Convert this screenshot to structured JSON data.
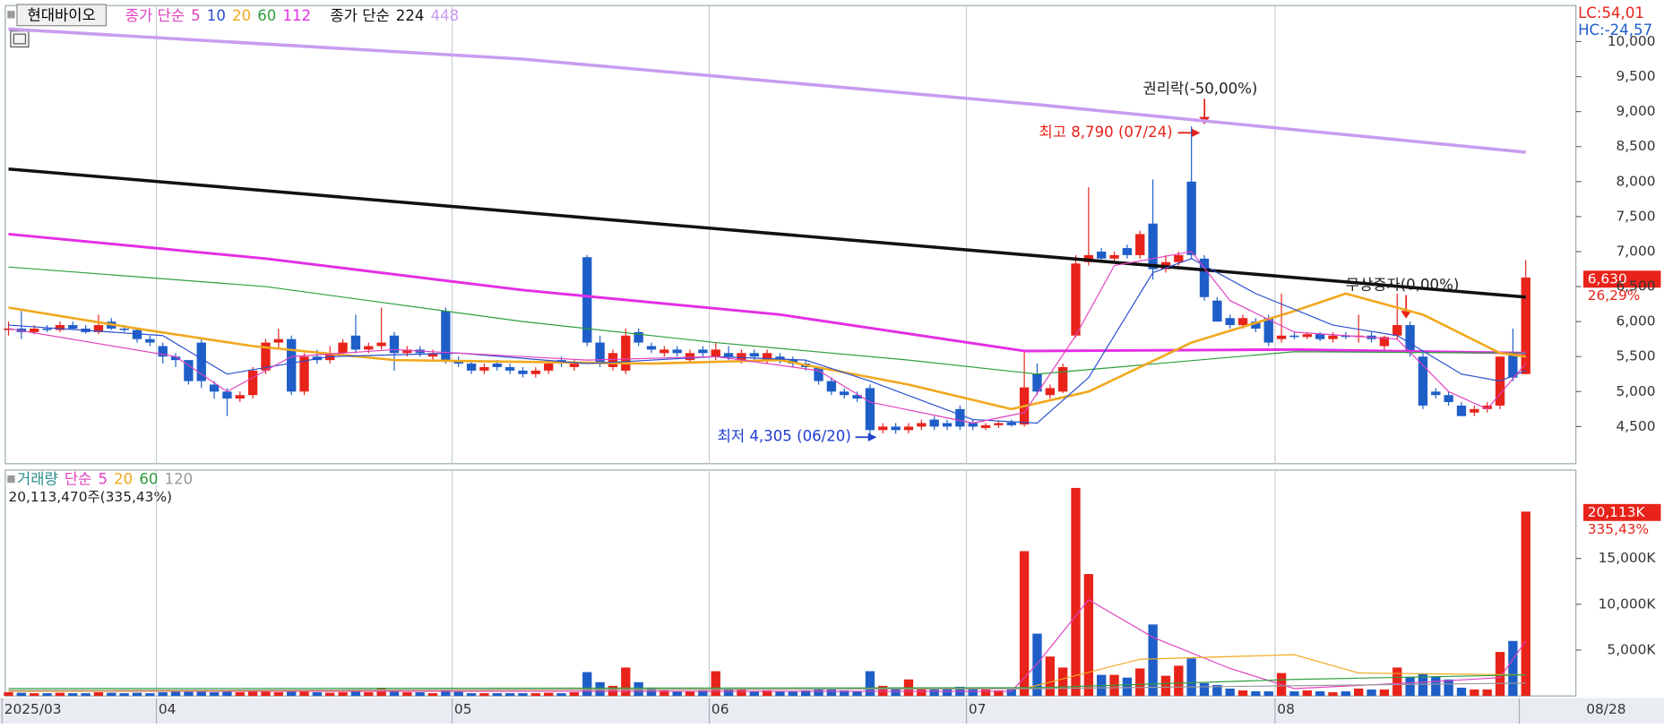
{
  "chart_data": [
    {
      "type": "candlestick",
      "title": "현대바이오",
      "up_color": "#e8231a",
      "down_color": "#1e5ec8",
      "xlim": [
        -0.25,
        121.9
      ],
      "ylim": [
        3970,
        10515
      ],
      "yticks": [
        {
          "value": 4500,
          "label": "4,500"
        },
        {
          "value": 5000,
          "label": "5,000"
        },
        {
          "value": 5500,
          "label": "5,500"
        },
        {
          "value": 6000,
          "label": "6,000"
        },
        {
          "value": 6500,
          "label": "6,500"
        },
        {
          "value": 7000,
          "label": "7,000"
        },
        {
          "value": 7500,
          "label": "7,500"
        },
        {
          "value": 8000,
          "label": "8,000"
        },
        {
          "value": 8500,
          "label": "8,500"
        },
        {
          "value": 9000,
          "label": "9,000"
        },
        {
          "value": 9500,
          "label": "9,500"
        },
        {
          "value": 10000,
          "label": "10,000"
        }
      ],
      "open": [
        5880,
        5900,
        5850,
        5900,
        5880,
        5950,
        5900,
        5850,
        6000,
        5900,
        5880,
        5750,
        5650,
        5500,
        5450,
        5700,
        5100,
        5000,
        4900,
        4950,
        5300,
        5700,
        5750,
        5000,
        5500,
        5450,
        5550,
        5800,
        5600,
        5650,
        5800,
        5550,
        5600,
        5500,
        6150,
        5450,
        5400,
        5300,
        5400,
        5350,
        5300,
        5250,
        5300,
        5450,
        5350,
        6920,
        5700,
        5350,
        5300,
        5850,
        5650,
        5550,
        5600,
        5450,
        5600,
        5500,
        5550,
        5450,
        5550,
        5450,
        5500,
        5450,
        5400,
        5350,
        5150,
        5000,
        4950,
        5050,
        4450,
        4500,
        4450,
        4500,
        4600,
        4550,
        4750,
        4550,
        4480,
        4520,
        4560,
        4530,
        5250,
        4950,
        5000,
        5800,
        6850,
        7000,
        6900,
        7050,
        6950,
        7400,
        6750,
        6850,
        8000,
        6900,
        6300,
        6050,
        5950,
        6000,
        6050,
        5750,
        5800,
        5780,
        5820,
        5750,
        5800,
        5780,
        5800,
        5650,
        5800,
        5950,
        5500,
        5000,
        4950,
        4800,
        4700,
        4750,
        4800,
        5550,
        5250
      ],
      "high": [
        6000,
        6150,
        5950,
        5950,
        6000,
        6000,
        5950,
        6100,
        6050,
        5950,
        5900,
        5800,
        5700,
        5550,
        5450,
        5750,
        5150,
        5050,
        5000,
        5350,
        5750,
        5900,
        5800,
        5550,
        5600,
        5650,
        5750,
        6100,
        5700,
        6200,
        5850,
        5650,
        5650,
        5600,
        6200,
        5500,
        5450,
        5400,
        5450,
        5400,
        5350,
        5350,
        5450,
        5500,
        5450,
        6950,
        5800,
        5600,
        5900,
        5900,
        5700,
        5650,
        5650,
        5600,
        5650,
        5700,
        5650,
        5600,
        5600,
        5600,
        5550,
        5500,
        5450,
        5350,
        5200,
        5050,
        5000,
        5100,
        4550,
        4550,
        4550,
        4600,
        4650,
        4600,
        4800,
        4600,
        4550,
        4580,
        4600,
        5600,
        5400,
        5100,
        5400,
        6950,
        7920,
        7050,
        7000,
        7100,
        7300,
        8030,
        6950,
        7000,
        8790,
        6950,
        6350,
        6100,
        6100,
        6050,
        6100,
        6400,
        5850,
        5850,
        5850,
        5850,
        5850,
        6100,
        5850,
        5800,
        6400,
        6000,
        5550,
        5050,
        5000,
        4850,
        4800,
        4850,
        5500,
        5900,
        6880
      ],
      "low": [
        5800,
        5750,
        5820,
        5850,
        5850,
        5880,
        5830,
        5820,
        5880,
        5850,
        5700,
        5650,
        5400,
        5350,
        5100,
        5050,
        4900,
        4650,
        4850,
        4900,
        5250,
        5600,
        4950,
        4950,
        5400,
        5400,
        5500,
        5550,
        5550,
        5600,
        5300,
        5500,
        5500,
        5450,
        5400,
        5350,
        5250,
        5250,
        5300,
        5250,
        5200,
        5200,
        5250,
        5350,
        5300,
        5650,
        5350,
        5300,
        5250,
        5650,
        5550,
        5500,
        5500,
        5400,
        5500,
        5450,
        5450,
        5400,
        5450,
        5400,
        5400,
        5350,
        5300,
        5100,
        4950,
        4900,
        4850,
        4305,
        4400,
        4400,
        4400,
        4450,
        4450,
        4450,
        4450,
        4450,
        4450,
        4480,
        4500,
        4500,
        4950,
        4900,
        4980,
        5770,
        6800,
        6850,
        6850,
        6900,
        6900,
        6600,
        6700,
        6800,
        6900,
        6300,
        6000,
        5900,
        5900,
        5850,
        5650,
        5700,
        5750,
        5750,
        5720,
        5700,
        5750,
        5700,
        5700,
        5600,
        5750,
        5500,
        4750,
        4900,
        4800,
        4650,
        4650,
        4700,
        4750,
        5150,
        5250
      ],
      "close": [
        5900,
        5850,
        5900,
        5880,
        5950,
        5900,
        5850,
        5950,
        5900,
        5880,
        5750,
        5700,
        5500,
        5450,
        5150,
        5150,
        5000,
        4900,
        4950,
        5300,
        5700,
        5750,
        5000,
        5500,
        5450,
        5550,
        5700,
        5600,
        5650,
        5700,
        5550,
        5600,
        5550,
        5550,
        5450,
        5400,
        5300,
        5350,
        5350,
        5300,
        5250,
        5300,
        5400,
        5400,
        5400,
        5700,
        5400,
        5550,
        5800,
        5700,
        5600,
        5600,
        5550,
        5550,
        5550,
        5600,
        5500,
        5550,
        5500,
        5550,
        5450,
        5400,
        5350,
        5150,
        5000,
        4950,
        4900,
        4450,
        4500,
        4450,
        4500,
        4550,
        4500,
        4500,
        4500,
        4500,
        4520,
        4550,
        4520,
        5060,
        5000,
        5050,
        5350,
        6830,
        6950,
        6900,
        6950,
        6950,
        7250,
        6750,
        6850,
        6950,
        6950,
        6350,
        6000,
        5950,
        6050,
        5900,
        5700,
        5800,
        5780,
        5820,
        5750,
        5800,
        5780,
        5800,
        5750,
        5780,
        5950,
        5550,
        4800,
        4950,
        4850,
        4650,
        4750,
        4800,
        5500,
        5200,
        6630
      ],
      "ma_groups": [
        {
          "label": "종가 단순",
          "series": [
            {
              "name": "5",
              "color": "#e040c0",
              "x": [
                0,
                13,
                17,
                22,
                30,
                45,
                55,
                63,
                67,
                75,
                79,
                83,
                86,
                92,
                95,
                100,
                108,
                112,
                115,
                118
              ],
              "values": [
                5900,
                5500,
                5000,
                5500,
                5600,
                5450,
                5500,
                5300,
                4850,
                4550,
                4700,
                5800,
                6800,
                7000,
                6300,
                5850,
                5750,
                5000,
                4750,
                5400
              ]
            },
            {
              "name": "10",
              "color": "#2a4ecf",
              "x": [
                0,
                12,
                17,
                25,
                35,
                45,
                55,
                62,
                67,
                75,
                80,
                84,
                89,
                92,
                97,
                103,
                108,
                113,
                116,
                118
              ],
              "values": [
                5950,
                5800,
                5250,
                5500,
                5550,
                5400,
                5500,
                5450,
                5150,
                4600,
                4550,
                5200,
                6700,
                6900,
                6400,
                5950,
                5800,
                5250,
                5150,
                5300
              ]
            },
            {
              "name": "20",
              "color": "#f0a81e",
              "x": [
                0,
                10,
                19,
                30,
                50,
                60,
                70,
                78,
                84,
                92,
                100,
                104,
                110,
                116,
                118
              ],
              "values": [
                6200,
                5900,
                5650,
                5450,
                5400,
                5450,
                5100,
                4750,
                5000,
                5700,
                6150,
                6400,
                6100,
                5550,
                5500
              ]
            },
            {
              "name": "60",
              "color": "#2e9e3e",
              "x": [
                0,
                20,
                40,
                55,
                70,
                80,
                100,
                118
              ],
              "values": [
                6780,
                6500,
                6000,
                5700,
                5450,
                5250,
                5570,
                5550
              ]
            },
            {
              "name": "112",
              "color": "#e52ee5",
              "x": [
                0,
                20,
                40,
                60,
                79,
                100,
                118
              ],
              "values": [
                7250,
                6900,
                6450,
                6100,
                5580,
                5600,
                5550
              ]
            }
          ]
        },
        {
          "label": "종가 단순",
          "series": [
            {
              "name": "224",
              "color": "#111111",
              "x": [
                0,
                60,
                118
              ],
              "values": [
                8180,
                7250,
                6350
              ]
            },
            {
              "name": "448",
              "color": "#c89cf0",
              "x": [
                0,
                40,
                80,
                118
              ],
              "values": [
                10180,
                9750,
                9100,
                8420
              ]
            }
          ]
        }
      ],
      "annotations": [
        {
          "text": "권리락(-50,00%)"
        },
        {
          "text": "최고 8,790 (07/24)"
        },
        {
          "text": "최저 4,305 (06/20)"
        },
        {
          "text": "무상증자(0,00%)"
        }
      ],
      "lc_label": "LC:54,01",
      "hc_label": "HC:-24,57",
      "last_price_label": "6,630",
      "change_label": "26,29%"
    },
    {
      "type": "bar",
      "legend_label": "거래량",
      "ma_label": "단순",
      "info": "20,113,470주(335,43%)",
      "last_label": "20,113K",
      "change_label": "335,43%",
      "xlim": [
        -0.25,
        121.9
      ],
      "ylim": [
        0,
        24650
      ],
      "yticks": [
        {
          "value": 5000,
          "label": "5,000K"
        },
        {
          "value": 10000,
          "label": "10,000K"
        },
        {
          "value": 15000,
          "label": "15,000K"
        }
      ],
      "xticks": [
        {
          "value": 0,
          "label": "2025/03"
        },
        {
          "value": 12,
          "label": "04"
        },
        {
          "value": 35,
          "label": "05"
        },
        {
          "value": 55,
          "label": "06"
        },
        {
          "value": 75,
          "label": "07"
        },
        {
          "value": 99,
          "label": "08"
        },
        {
          "value": 118,
          "label": "08/28"
        }
      ],
      "grid": true,
      "values": [
        400,
        350,
        300,
        300,
        350,
        300,
        300,
        400,
        350,
        300,
        350,
        300,
        400,
        500,
        450,
        550,
        400,
        500,
        400,
        600,
        500,
        400,
        700,
        600,
        400,
        350,
        400,
        500,
        400,
        900,
        600,
        400,
        400,
        300,
        700,
        450,
        300,
        300,
        300,
        300,
        300,
        300,
        350,
        300,
        400,
        2600,
        1500,
        1100,
        3100,
        1500,
        900,
        600,
        500,
        500,
        600,
        2700,
        800,
        700,
        500,
        600,
        500,
        500,
        600,
        700,
        800,
        600,
        500,
        2700,
        1100,
        900,
        1800,
        800,
        700,
        800,
        1000,
        800,
        700,
        600,
        700,
        15800,
        6800,
        4300,
        3100,
        22700,
        13300,
        2300,
        2300,
        2000,
        3000,
        7800,
        2200,
        3300,
        4100,
        1400,
        1200,
        800,
        600,
        500,
        500,
        2500,
        500,
        600,
        500,
        400,
        500,
        800,
        700,
        700,
        3100,
        2100,
        2400,
        2100,
        1800,
        900,
        700,
        700,
        4800,
        6000,
        20113
      ],
      "ma_series": [
        {
          "name": "5",
          "color": "#e040c0",
          "x": [
            0,
            78,
            80,
            84,
            89,
            95,
            100,
            110,
            116,
            118
          ],
          "values": [
            500,
            500,
            3500,
            10500,
            6400,
            3000,
            800,
            1500,
            2000,
            6000
          ]
        },
        {
          "name": "20",
          "color": "#f0a81e",
          "x": [
            0,
            79,
            88,
            100,
            105,
            118
          ],
          "values": [
            500,
            800,
            4000,
            4500,
            2500,
            2300
          ]
        },
        {
          "name": "60",
          "color": "#2e9e3e",
          "x": [
            0,
            80,
            100,
            118
          ],
          "values": [
            800,
            900,
            1800,
            2300
          ]
        },
        {
          "name": "120",
          "color": "#999999",
          "x": [
            0,
            80,
            118
          ],
          "values": [
            600,
            800,
            1400
          ]
        }
      ]
    }
  ]
}
